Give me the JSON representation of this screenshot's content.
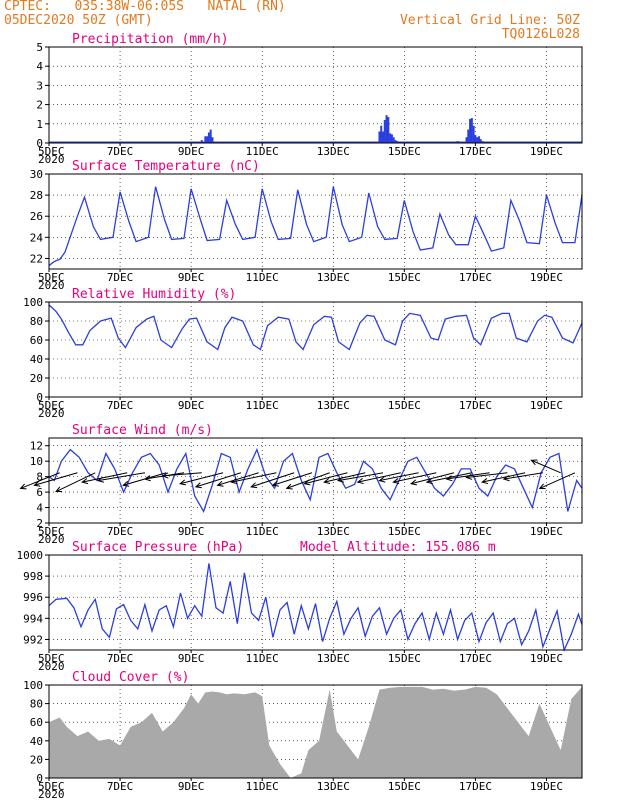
{
  "colors": {
    "header": "#e07a1f",
    "title": "#e6007e",
    "line": "#2b3fe0",
    "bar": "#2b3fe0",
    "cloud": "#a9a9a9",
    "arrow": "#000000"
  },
  "header": {
    "line1": "CPTEC:   035:38W-06:05S   NATAL (RN)",
    "line2": "05DEC2020 50Z (GMT)",
    "right1": "Vertical Grid Line: 50Z",
    "right2": "TQ0126L028"
  },
  "xaxis": {
    "days": [
      5,
      7,
      9,
      11,
      13,
      15,
      17,
      19
    ],
    "labels": [
      "5DEC",
      "7DEC",
      "9DEC",
      "11DEC",
      "13DEC",
      "15DEC",
      "17DEC",
      "19DEC"
    ],
    "year_label": "2020",
    "range": [
      5,
      20
    ]
  },
  "chart_data": [
    {
      "type": "bar",
      "title": "Precipitation (mm/h)",
      "ylim": [
        0,
        5
      ],
      "yticks": [
        0,
        1,
        2,
        3,
        4,
        5
      ],
      "x": [
        5.5,
        6.5,
        8.0,
        9.3,
        9.4,
        9.45,
        9.5,
        9.55,
        9.6,
        11.5,
        12.8,
        13.5,
        14.3,
        14.35,
        14.4,
        14.45,
        14.5,
        14.55,
        14.6,
        14.65,
        14.7,
        14.75,
        14.8,
        16.0,
        16.5,
        16.75,
        16.8,
        16.85,
        16.9,
        16.95,
        17.0,
        17.05,
        17.1,
        17.15,
        17.2,
        18.0,
        19.3
      ],
      "values": [
        0.03,
        0.03,
        0.04,
        0.15,
        0.35,
        0.35,
        0.55,
        0.7,
        0.3,
        0.04,
        0.04,
        0.05,
        0.6,
        0.9,
        0.6,
        1.2,
        1.45,
        1.35,
        0.5,
        0.45,
        0.3,
        0.15,
        0.1,
        0.05,
        0.1,
        0.3,
        0.7,
        1.25,
        1.3,
        0.9,
        0.4,
        0.3,
        0.35,
        0.2,
        0.1,
        0.05,
        0.05
      ]
    },
    {
      "type": "line",
      "title": "Surface Temperature (nC)",
      "ylim": [
        21,
        30
      ],
      "yticks": [
        22,
        24,
        26,
        28,
        30
      ],
      "x": [
        5.0,
        5.1,
        5.2,
        5.3,
        5.45,
        5.8,
        6.0,
        6.25,
        6.45,
        6.8,
        7.0,
        7.25,
        7.45,
        7.8,
        8.0,
        8.25,
        8.45,
        8.8,
        9.0,
        9.25,
        9.45,
        9.8,
        10.0,
        10.25,
        10.45,
        10.8,
        11.0,
        11.25,
        11.45,
        11.8,
        12.0,
        12.25,
        12.45,
        12.8,
        13.0,
        13.25,
        13.45,
        13.8,
        14.0,
        14.25,
        14.45,
        14.8,
        15.0,
        15.25,
        15.45,
        15.8,
        16.0,
        16.25,
        16.45,
        16.8,
        17.0,
        17.25,
        17.45,
        17.8,
        18.0,
        18.25,
        18.45,
        18.8,
        19.0,
        19.25,
        19.45,
        19.8,
        20.0
      ],
      "values": [
        21.3,
        21.6,
        21.8,
        21.9,
        22.6,
        26.0,
        27.8,
        25.0,
        23.8,
        24.0,
        28.3,
        25.5,
        23.6,
        24.0,
        28.8,
        25.7,
        23.8,
        23.9,
        28.6,
        25.8,
        23.7,
        23.8,
        27.5,
        25.2,
        23.8,
        24.0,
        28.6,
        25.5,
        23.8,
        23.9,
        28.5,
        25.2,
        23.6,
        24.0,
        28.8,
        25.2,
        23.6,
        24.0,
        28.2,
        25.0,
        23.8,
        23.9,
        27.5,
        24.5,
        22.8,
        23.0,
        26.2,
        24.2,
        23.3,
        23.3,
        26.0,
        24.2,
        22.7,
        23.0,
        27.5,
        25.5,
        23.5,
        23.4,
        28.0,
        25.3,
        23.5,
        23.5,
        28.0
      ]
    },
    {
      "type": "line",
      "title": "Relative Humidity (%)",
      "ylim": [
        0,
        100
      ],
      "yticks": [
        0,
        20,
        40,
        60,
        80,
        100
      ],
      "x": [
        5.0,
        5.2,
        5.35,
        5.55,
        5.75,
        5.95,
        6.15,
        6.45,
        6.75,
        6.95,
        7.15,
        7.45,
        7.75,
        7.95,
        8.15,
        8.45,
        8.75,
        8.95,
        9.15,
        9.45,
        9.75,
        9.95,
        10.15,
        10.45,
        10.75,
        10.95,
        11.15,
        11.45,
        11.75,
        11.95,
        12.15,
        12.45,
        12.75,
        12.95,
        13.15,
        13.45,
        13.75,
        13.95,
        14.15,
        14.45,
        14.75,
        14.95,
        15.15,
        15.45,
        15.75,
        15.95,
        16.15,
        16.45,
        16.75,
        16.95,
        17.15,
        17.45,
        17.75,
        17.95,
        18.15,
        18.45,
        18.75,
        18.95,
        19.15,
        19.45,
        19.75,
        20.0
      ],
      "values": [
        97,
        90,
        82,
        68,
        55,
        55,
        70,
        80,
        83,
        62,
        52,
        73,
        82,
        85,
        60,
        52,
        72,
        82,
        83,
        58,
        50,
        73,
        84,
        80,
        55,
        50,
        75,
        84,
        82,
        58,
        50,
        76,
        85,
        84,
        58,
        50,
        78,
        86,
        85,
        60,
        55,
        80,
        88,
        86,
        62,
        60,
        82,
        85,
        86,
        62,
        55,
        83,
        88,
        88,
        62,
        58,
        80,
        86,
        84,
        62,
        57,
        78
      ]
    },
    {
      "type": "line",
      "title": "Surface Wind (m/s)",
      "ylim": [
        2,
        13
      ],
      "yticks": [
        2,
        4,
        6,
        8,
        10,
        12
      ],
      "x": [
        5.0,
        5.15,
        5.35,
        5.6,
        5.85,
        6.1,
        6.35,
        6.6,
        6.85,
        7.1,
        7.35,
        7.6,
        7.85,
        8.1,
        8.35,
        8.6,
        8.85,
        9.1,
        9.35,
        9.6,
        9.85,
        10.1,
        10.35,
        10.6,
        10.85,
        11.1,
        11.35,
        11.6,
        11.85,
        12.1,
        12.35,
        12.6,
        12.85,
        13.1,
        13.35,
        13.6,
        13.85,
        14.1,
        14.35,
        14.6,
        14.85,
        15.1,
        15.35,
        15.6,
        15.85,
        16.1,
        16.35,
        16.6,
        16.85,
        17.1,
        17.35,
        17.6,
        17.85,
        18.1,
        18.35,
        18.6,
        18.85,
        19.1,
        19.35,
        19.6,
        19.85,
        20.0
      ],
      "values": [
        8.0,
        7.5,
        10.0,
        11.5,
        10.5,
        8.5,
        7.5,
        11.0,
        9.0,
        6.0,
        8.5,
        10.5,
        11.0,
        9.5,
        6.0,
        9.0,
        11.0,
        5.5,
        3.5,
        7.0,
        11.0,
        10.5,
        6.0,
        9.0,
        11.5,
        8.0,
        6.5,
        10.0,
        11.0,
        7.5,
        5.0,
        10.5,
        11.0,
        8.5,
        6.5,
        7.0,
        10.0,
        9.0,
        6.5,
        5.0,
        7.5,
        10.0,
        10.5,
        8.5,
        6.5,
        5.5,
        7.0,
        9.0,
        9.0,
        6.5,
        5.5,
        8.0,
        9.5,
        9.0,
        6.5,
        4.0,
        8.5,
        10.5,
        11.0,
        3.5,
        7.5,
        6.5
      ],
      "vectors_x": [
        5.3,
        5.8,
        6.3,
        7.2,
        7.7,
        8.3,
        8.8,
        9.3,
        9.9,
        10.4,
        10.9,
        11.4,
        11.9,
        12.4,
        12.9,
        13.4,
        13.9,
        14.4,
        14.9,
        15.4,
        15.9,
        16.4,
        16.9,
        17.4,
        17.9,
        18.4,
        18.9,
        19.4,
        19.8
      ],
      "vectors": [
        [
          2.0,
          1.0
        ],
        [
          2.2,
          0.8
        ],
        [
          2.0,
          1.2
        ],
        [
          2.3,
          0.6
        ],
        [
          2.4,
          0.5
        ],
        [
          2.2,
          0.8
        ],
        [
          2.0,
          0.4
        ],
        [
          2.0,
          0.2
        ],
        [
          2.2,
          0.7
        ],
        [
          2.3,
          0.9
        ],
        [
          2.1,
          0.8
        ],
        [
          2.3,
          0.6
        ],
        [
          2.2,
          0.9
        ],
        [
          2.0,
          0.8
        ],
        [
          2.2,
          1.0
        ],
        [
          2.2,
          0.7
        ],
        [
          2.1,
          0.6
        ],
        [
          2.3,
          0.5
        ],
        [
          2.2,
          0.6
        ],
        [
          2.0,
          0.5
        ],
        [
          2.2,
          0.6
        ],
        [
          2.2,
          0.7
        ],
        [
          2.3,
          0.6
        ],
        [
          2.2,
          0.4
        ],
        [
          2.1,
          0.3
        ],
        [
          2.2,
          0.6
        ],
        [
          2.0,
          0.4
        ],
        [
          1.5,
          -0.8
        ],
        [
          1.8,
          1.0
        ]
      ]
    },
    {
      "type": "line",
      "title": "Surface Pressure (hPa)",
      "annotation": "Model Altitude: 155.086 m",
      "ylim": [
        991,
        1000
      ],
      "yticks": [
        992,
        994,
        996,
        998,
        1000
      ],
      "x": [
        5.0,
        5.2,
        5.5,
        5.7,
        5.9,
        6.1,
        6.3,
        6.5,
        6.7,
        6.9,
        7.1,
        7.3,
        7.5,
        7.7,
        7.9,
        8.1,
        8.3,
        8.5,
        8.7,
        8.9,
        9.1,
        9.3,
        9.5,
        9.7,
        9.9,
        10.1,
        10.3,
        10.5,
        10.7,
        10.9,
        11.1,
        11.3,
        11.5,
        11.7,
        11.9,
        12.1,
        12.3,
        12.5,
        12.7,
        12.9,
        13.1,
        13.3,
        13.5,
        13.7,
        13.9,
        14.1,
        14.3,
        14.5,
        14.7,
        14.9,
        15.1,
        15.3,
        15.5,
        15.7,
        15.9,
        16.1,
        16.3,
        16.5,
        16.7,
        16.9,
        17.1,
        17.3,
        17.5,
        17.7,
        17.9,
        18.1,
        18.3,
        18.5,
        18.7,
        18.9,
        19.1,
        19.3,
        19.5,
        19.7,
        19.9,
        20.0
      ],
      "values": [
        995.2,
        995.8,
        995.9,
        995.0,
        993.2,
        994.8,
        995.8,
        993.0,
        992.2,
        994.9,
        995.3,
        993.8,
        993.0,
        995.3,
        992.8,
        994.8,
        995.2,
        993.2,
        996.4,
        994.0,
        995.2,
        994.2,
        999.2,
        995.0,
        994.5,
        997.5,
        993.5,
        998.3,
        994.5,
        993.8,
        996.0,
        992.2,
        994.8,
        995.5,
        992.5,
        995.2,
        993.0,
        995.4,
        991.8,
        994.0,
        995.6,
        992.5,
        994.0,
        995.0,
        992.3,
        994.2,
        995.0,
        992.5,
        994.0,
        994.8,
        992.0,
        993.5,
        994.5,
        992.0,
        994.5,
        992.5,
        994.8,
        992.0,
        993.8,
        994.5,
        991.8,
        993.6,
        994.5,
        991.8,
        993.5,
        994.0,
        991.5,
        992.8,
        994.8,
        991.3,
        993.0,
        994.7,
        991.0,
        992.5,
        994.4,
        993.4
      ]
    },
    {
      "type": "area",
      "title": "Cloud Cover (%)",
      "ylim": [
        0,
        100
      ],
      "yticks": [
        0,
        20,
        40,
        60,
        80,
        100
      ],
      "x": [
        5.0,
        5.3,
        5.5,
        5.8,
        6.1,
        6.4,
        6.7,
        7.0,
        7.3,
        7.6,
        7.9,
        8.2,
        8.5,
        8.8,
        9.0,
        9.2,
        9.4,
        9.6,
        9.8,
        10.0,
        10.2,
        10.5,
        10.8,
        11.0,
        11.2,
        11.5,
        11.8,
        12.1,
        12.3,
        12.6,
        12.9,
        13.1,
        13.4,
        13.7,
        14.0,
        14.3,
        14.6,
        14.9,
        15.2,
        15.5,
        15.8,
        16.1,
        16.4,
        16.7,
        17.0,
        17.3,
        17.6,
        17.9,
        18.2,
        18.5,
        18.8,
        19.1,
        19.4,
        19.7,
        20.0
      ],
      "values": [
        60,
        65,
        55,
        45,
        50,
        40,
        42,
        35,
        55,
        60,
        70,
        50,
        60,
        75,
        90,
        80,
        92,
        93,
        92,
        90,
        91,
        90,
        92,
        88,
        35,
        15,
        0,
        5,
        30,
        40,
        95,
        50,
        35,
        20,
        55,
        95,
        97,
        98,
        98,
        98,
        95,
        96,
        94,
        95,
        98,
        97,
        90,
        75,
        60,
        45,
        80,
        55,
        30,
        85,
        98
      ]
    }
  ]
}
